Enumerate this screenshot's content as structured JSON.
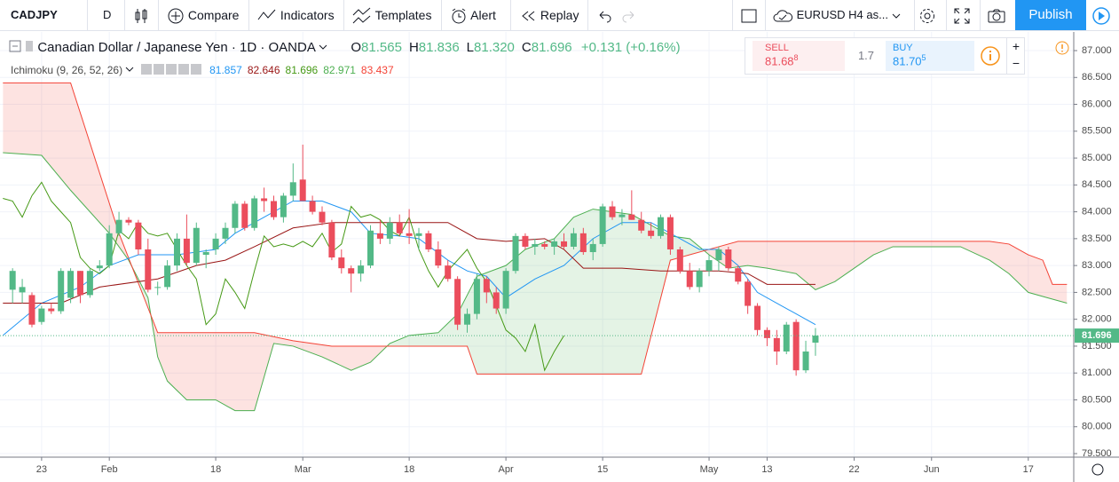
{
  "toolbar": {
    "symbol": "CADJPY",
    "interval": "D",
    "compare": "Compare",
    "indicators": "Indicators",
    "templates": "Templates",
    "alert": "Alert",
    "replay": "Replay",
    "layout": "EURUSD H4 as...",
    "publish": "Publish"
  },
  "legend": {
    "title": "Canadian Dollar / Japanese Yen · 1D · OANDA",
    "ohlc": [
      {
        "key": "O",
        "value": "81.565"
      },
      {
        "key": "H",
        "value": "81.836"
      },
      {
        "key": "L",
        "value": "81.320"
      },
      {
        "key": "C",
        "value": "81.696"
      }
    ],
    "change": "+0.131 (+0.16%)"
  },
  "indicator": {
    "name": "Ichimoku (9, 26, 52, 26)",
    "values": [
      81.857,
      82.646,
      81.696,
      82.971,
      83.437
    ]
  },
  "trade": {
    "sell": "SELL",
    "sell_price": "81.68",
    "sell_pip": "8",
    "spread": "1.7",
    "buy": "BUY",
    "buy_price": "81.70",
    "buy_pip": "5"
  },
  "chart_data": {
    "type": "candlestick",
    "up_color": "#53b987",
    "down_color": "#eb4d5c",
    "grid": true,
    "xlim": [
      -4.3,
      106.7
    ],
    "ylim": [
      79.434,
      87.347
    ],
    "xticks": [
      {
        "value": 0,
        "label": "23"
      },
      {
        "value": 7,
        "label": "Feb"
      },
      {
        "value": 18,
        "label": "18"
      },
      {
        "value": 27,
        "label": "Mar"
      },
      {
        "value": 38,
        "label": "18"
      },
      {
        "value": 48,
        "label": "Apr"
      },
      {
        "value": 58,
        "label": "15"
      },
      {
        "value": 69,
        "label": "May"
      },
      {
        "value": 75,
        "label": "13"
      },
      {
        "value": 84,
        "label": "22"
      },
      {
        "value": 92,
        "label": "Jun"
      },
      {
        "value": 102,
        "label": "17"
      }
    ],
    "yticks": [
      {
        "value": 79.5,
        "label": "79.500"
      },
      {
        "value": 80,
        "label": "80.000"
      },
      {
        "value": 80.5,
        "label": "80.500"
      },
      {
        "value": 81,
        "label": "81.000"
      },
      {
        "value": 81.5,
        "label": "81.500"
      },
      {
        "value": 82,
        "label": "82.000"
      },
      {
        "value": 82.5,
        "label": "82.500"
      },
      {
        "value": 83,
        "label": "83.000"
      },
      {
        "value": 83.5,
        "label": "83.500"
      },
      {
        "value": 84,
        "label": "84.000"
      },
      {
        "value": 84.5,
        "label": "84.500"
      },
      {
        "value": 85,
        "label": "85.000"
      },
      {
        "value": 85.5,
        "label": "85.500"
      },
      {
        "value": 86,
        "label": "86.000"
      },
      {
        "value": 86.5,
        "label": "86.500"
      },
      {
        "value": 87,
        "label": "87.000"
      }
    ],
    "last_price": 81.696,
    "x": [
      -3,
      -2,
      -1,
      0,
      1,
      2,
      3,
      4,
      5,
      6,
      7,
      8,
      9,
      10,
      11,
      12,
      13,
      14,
      15,
      16,
      17,
      18,
      19,
      20,
      21,
      22,
      23,
      24,
      25,
      26,
      27,
      28,
      29,
      30,
      31,
      32,
      33,
      34,
      35,
      36,
      37,
      38,
      39,
      40,
      41,
      42,
      43,
      44,
      45,
      46,
      47,
      48,
      49,
      50,
      51,
      52,
      53,
      54,
      55,
      56,
      57,
      58,
      59,
      60,
      61,
      62,
      63,
      64,
      65,
      66,
      67,
      68,
      69,
      70,
      71,
      72,
      73,
      74,
      75,
      76,
      77,
      78,
      79,
      80
    ],
    "candles": [
      [
        82.55,
        82.95,
        82.3,
        82.9
      ],
      [
        82.5,
        82.75,
        82.3,
        82.6
      ],
      [
        82.45,
        82.5,
        81.85,
        81.9
      ],
      [
        81.95,
        82.25,
        81.9,
        82.2
      ],
      [
        82.2,
        82.3,
        82.1,
        82.15
      ],
      [
        82.15,
        82.95,
        82.1,
        82.9
      ],
      [
        82.4,
        82.95,
        82.3,
        82.9
      ],
      [
        82.9,
        82.9,
        82.3,
        82.45
      ],
      [
        82.45,
        82.95,
        82.4,
        82.9
      ],
      [
        82.95,
        83.1,
        82.9,
        83.0
      ],
      [
        83.0,
        83.75,
        82.95,
        83.6
      ],
      [
        83.6,
        84.0,
        83.55,
        83.85
      ],
      [
        83.85,
        83.9,
        83.75,
        83.8
      ],
      [
        83.8,
        83.85,
        83.2,
        83.3
      ],
      [
        83.3,
        83.5,
        82.5,
        82.55
      ],
      [
        82.6,
        82.7,
        82.45,
        82.6
      ],
      [
        82.6,
        83.1,
        82.55,
        83.0
      ],
      [
        83.0,
        83.6,
        82.9,
        83.5
      ],
      [
        83.5,
        83.95,
        83.0,
        83.05
      ],
      [
        83.05,
        83.8,
        83.0,
        83.7
      ],
      [
        83.2,
        83.3,
        82.95,
        83.25
      ],
      [
        83.3,
        83.6,
        83.2,
        83.5
      ],
      [
        83.5,
        83.8,
        83.4,
        83.7
      ],
      [
        83.7,
        84.2,
        83.6,
        84.15
      ],
      [
        84.15,
        84.2,
        83.65,
        83.7
      ],
      [
        83.7,
        84.3,
        83.65,
        84.25
      ],
      [
        84.25,
        84.45,
        84.0,
        84.2
      ],
      [
        84.2,
        84.3,
        83.85,
        83.9
      ],
      [
        83.9,
        84.35,
        83.8,
        84.3
      ],
      [
        84.3,
        84.9,
        84.2,
        84.55
      ],
      [
        84.6,
        85.25,
        84.2,
        84.2
      ],
      [
        84.2,
        84.3,
        83.95,
        84.0
      ],
      [
        84.0,
        84.1,
        83.75,
        83.8
      ],
      [
        83.8,
        83.85,
        83.1,
        83.15
      ],
      [
        83.15,
        83.3,
        82.85,
        82.95
      ],
      [
        82.95,
        83.0,
        82.5,
        82.85
      ],
      [
        82.85,
        83.1,
        82.7,
        83.0
      ],
      [
        83.0,
        83.75,
        82.95,
        83.65
      ],
      [
        83.6,
        83.85,
        83.4,
        83.5
      ],
      [
        83.5,
        83.9,
        83.4,
        83.8
      ],
      [
        83.8,
        83.95,
        83.55,
        83.6
      ],
      [
        83.6,
        84.05,
        83.4,
        83.55
      ],
      [
        83.55,
        83.7,
        83.3,
        83.6
      ],
      [
        83.6,
        83.65,
        83.25,
        83.3
      ],
      [
        83.3,
        83.45,
        82.95,
        83.0
      ],
      [
        83.0,
        83.1,
        82.7,
        82.75
      ],
      [
        82.75,
        82.8,
        81.8,
        81.9
      ],
      [
        81.9,
        82.2,
        81.75,
        82.1
      ],
      [
        82.1,
        82.85,
        82.0,
        82.75
      ],
      [
        82.75,
        82.8,
        82.3,
        82.5
      ],
      [
        82.5,
        82.6,
        82.1,
        82.2
      ],
      [
        82.2,
        82.95,
        82.1,
        82.9
      ],
      [
        82.9,
        83.6,
        82.85,
        83.55
      ],
      [
        83.55,
        83.6,
        83.3,
        83.35
      ],
      [
        83.35,
        83.5,
        83.2,
        83.4
      ],
      [
        83.4,
        83.45,
        83.3,
        83.35
      ],
      [
        83.35,
        83.5,
        83.2,
        83.45
      ],
      [
        83.45,
        83.6,
        83.3,
        83.35
      ],
      [
        83.35,
        83.7,
        83.3,
        83.6
      ],
      [
        83.6,
        83.7,
        83.2,
        83.25
      ],
      [
        83.25,
        83.5,
        83.1,
        83.4
      ],
      [
        83.4,
        84.15,
        83.35,
        84.1
      ],
      [
        84.1,
        84.2,
        83.85,
        83.9
      ],
      [
        83.9,
        84.05,
        83.75,
        83.95
      ],
      [
        83.95,
        84.4,
        83.85,
        83.85
      ],
      [
        83.85,
        84.0,
        83.6,
        83.65
      ],
      [
        83.65,
        83.8,
        83.5,
        83.55
      ],
      [
        83.55,
        83.95,
        83.5,
        83.9
      ],
      [
        83.9,
        83.95,
        83.2,
        83.3
      ],
      [
        83.3,
        83.35,
        82.85,
        82.9
      ],
      [
        82.9,
        83.05,
        82.55,
        82.6
      ],
      [
        82.6,
        82.95,
        82.5,
        82.9
      ],
      [
        82.9,
        83.2,
        82.8,
        83.1
      ],
      [
        83.1,
        83.35,
        82.9,
        83.3
      ],
      [
        83.3,
        83.35,
        82.9,
        82.95
      ],
      [
        82.95,
        83.0,
        82.65,
        82.7
      ],
      [
        82.7,
        82.75,
        82.1,
        82.25
      ],
      [
        82.25,
        82.3,
        81.7,
        81.8
      ],
      [
        81.8,
        81.85,
        81.5,
        81.65
      ],
      [
        81.65,
        81.8,
        81.15,
        81.4
      ],
      [
        81.4,
        81.95,
        81.35,
        81.9
      ],
      [
        81.95,
        82.0,
        80.95,
        81.05
      ],
      [
        81.05,
        81.6,
        81.0,
        81.4
      ],
      [
        81.565,
        81.836,
        81.32,
        81.696
      ]
    ],
    "cloud_colors": [
      "rgba(76,175,80,0.15)",
      "rgba(244,67,54,0.15)"
    ],
    "series": [
      {
        "color": "#4caf50",
        "x": [
          -4,
          0,
          3,
          7,
          9,
          11,
          12,
          13,
          15,
          18,
          20,
          22,
          24,
          26,
          29,
          32,
          34,
          36,
          38,
          41,
          43,
          45,
          48,
          50,
          53,
          55,
          57,
          59,
          61,
          63,
          65,
          67,
          69,
          71,
          73,
          75,
          78,
          80,
          82,
          84,
          86,
          88,
          95,
          98,
          100,
          102,
          104,
          106
        ],
        "values": [
          85.1,
          85.05,
          84.4,
          83.6,
          83.1,
          82.4,
          81.3,
          80.85,
          80.5,
          80.5,
          80.3,
          80.3,
          81.55,
          81.5,
          81.3,
          81.05,
          81.2,
          81.55,
          81.7,
          81.75,
          82.1,
          82.8,
          83.0,
          83.3,
          83.5,
          83.9,
          84.05,
          84.0,
          83.95,
          83.75,
          83.55,
          83.5,
          83.2,
          82.95,
          83.0,
          82.95,
          82.85,
          82.55,
          82.7,
          82.95,
          83.2,
          83.35,
          83.35,
          83.1,
          82.85,
          82.5,
          82.4,
          82.3
        ]
      },
      {
        "color": "#f44336",
        "x": [
          -4,
          3,
          8,
          12,
          22,
          26,
          30,
          44,
          45,
          62,
          65,
          67,
          70,
          72,
          98,
          100,
          102,
          103.5,
          104.5,
          106
        ],
        "values": [
          86.4,
          86.4,
          83.6,
          81.75,
          81.75,
          81.6,
          81.5,
          81.5,
          80.98,
          80.98,
          83.1,
          83.2,
          83.35,
          83.45,
          83.45,
          83.4,
          83.2,
          83.1,
          82.65,
          82.65
        ]
      },
      {
        "color": "#2196f3",
        "x": [
          -4,
          0,
          4,
          7,
          10,
          14,
          18,
          20,
          23,
          26,
          29,
          32,
          34,
          37,
          39,
          42,
          44,
          46,
          48,
          51,
          54,
          57,
          60,
          63,
          66,
          68,
          70,
          72,
          74,
          76,
          78,
          80
        ],
        "values": [
          81.7,
          82.3,
          82.6,
          83.0,
          83.2,
          83.2,
          83.3,
          83.6,
          83.9,
          84.2,
          84.2,
          84.0,
          83.6,
          83.55,
          83.5,
          83.1,
          82.9,
          82.8,
          82.4,
          82.75,
          83.0,
          83.5,
          83.8,
          83.8,
          83.5,
          83.3,
          83.3,
          83.0,
          82.5,
          82.3,
          82.1,
          81.9
        ]
      },
      {
        "color": "#991515",
        "x": [
          -4,
          2,
          6,
          12,
          16,
          19,
          22,
          26,
          30,
          38,
          42,
          45,
          48,
          52,
          54,
          56,
          60,
          64,
          67,
          70,
          73,
          75,
          80
        ],
        "values": [
          82.3,
          82.3,
          82.6,
          82.75,
          83.0,
          83.1,
          83.35,
          83.7,
          83.8,
          83.8,
          83.8,
          83.5,
          83.45,
          83.5,
          83.3,
          82.95,
          82.95,
          82.9,
          82.9,
          82.9,
          82.85,
          82.65,
          82.65
        ]
      },
      {
        "color": "#459915",
        "x": [
          -4,
          -3,
          -2,
          -1,
          0,
          1,
          2,
          3,
          4,
          5,
          6,
          7,
          8,
          9,
          10,
          11,
          12,
          13,
          14,
          15,
          16,
          17,
          18,
          19,
          20,
          21,
          22,
          23,
          24,
          25,
          26,
          27,
          28,
          29,
          30,
          31,
          32,
          33,
          34,
          35,
          36,
          37,
          38,
          39,
          40,
          41,
          42,
          43,
          44,
          45,
          46,
          47,
          48,
          49,
          50,
          51,
          52,
          53,
          54
        ],
        "values": [
          84.25,
          84.2,
          83.9,
          84.3,
          84.55,
          84.2,
          84.0,
          83.8,
          83.15,
          82.95,
          82.85,
          83.0,
          83.65,
          83.5,
          83.8,
          83.6,
          83.55,
          83.6,
          83.3,
          83.0,
          82.75,
          81.9,
          82.1,
          82.75,
          82.5,
          82.2,
          82.9,
          83.55,
          83.35,
          83.4,
          83.35,
          83.45,
          83.35,
          83.6,
          83.25,
          83.4,
          84.1,
          83.9,
          83.95,
          83.85,
          83.65,
          83.55,
          83.9,
          83.3,
          82.9,
          82.6,
          82.9,
          83.1,
          83.3,
          82.95,
          82.7,
          82.25,
          81.8,
          81.65,
          81.4,
          81.9,
          81.05,
          81.4,
          81.696
        ]
      }
    ]
  }
}
